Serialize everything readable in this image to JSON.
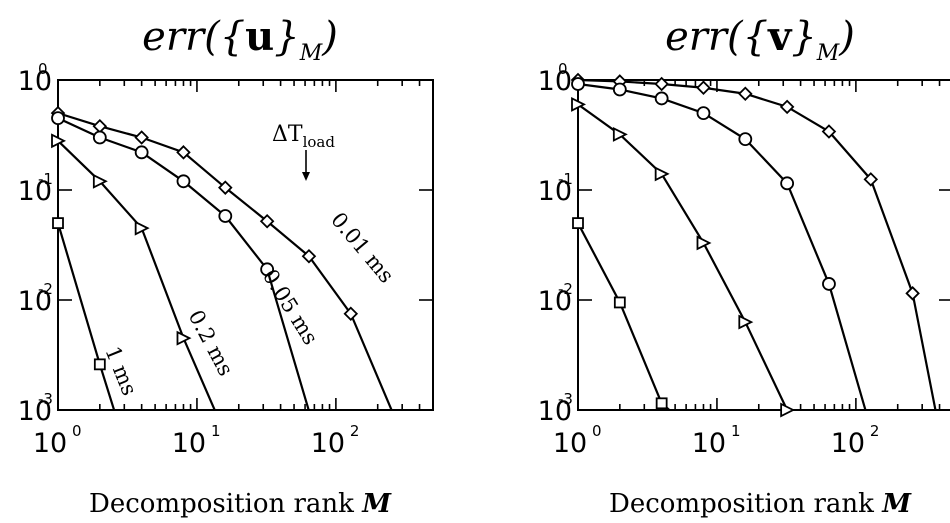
{
  "chart_data": [
    {
      "type": "line",
      "title": {
        "prefix": "err({",
        "bold": "u",
        "suffix": "}",
        "sub": "M",
        "close": ")"
      },
      "xlabel": {
        "text": "Decomposition rank ",
        "var": "M"
      },
      "xscale": "log",
      "yscale": "log",
      "xlim": [
        1,
        500
      ],
      "ylim": [
        0.001,
        1
      ],
      "xticks": [
        "10",
        "10",
        "10"
      ],
      "xtick_exponents": [
        "0",
        "1",
        "2"
      ],
      "yticks": [
        "10",
        "10",
        "10",
        "10"
      ],
      "ytick_exponents": [
        "-3",
        "-2",
        "-1",
        "0"
      ],
      "annotation": {
        "text": "ΔT",
        "sub": "load"
      },
      "series": [
        {
          "name": "0.01 ms",
          "marker": "diamond",
          "x": [
            1,
            2,
            4,
            8,
            16,
            32,
            64,
            128,
            256
          ],
          "y": [
            0.5,
            0.38,
            0.3,
            0.22,
            0.105,
            0.052,
            0.025,
            0.0075,
            0.00095
          ]
        },
        {
          "name": "0.05 ms",
          "marker": "circle",
          "x": [
            1,
            2,
            4,
            8,
            16,
            32,
            64
          ],
          "y": [
            0.45,
            0.3,
            0.22,
            0.12,
            0.058,
            0.019,
            0.00098
          ]
        },
        {
          "name": "0.2 ms",
          "marker": "triangle-right",
          "x": [
            1,
            2,
            4,
            8,
            16
          ],
          "y": [
            0.28,
            0.12,
            0.045,
            0.0045,
            0.0006
          ]
        },
        {
          "name": "1 ms",
          "marker": "square",
          "x": [
            1,
            2,
            2.6
          ],
          "y": [
            0.05,
            0.0026,
            0.0009
          ]
        }
      ]
    },
    {
      "type": "line",
      "title": {
        "prefix": "err({",
        "bold": "v",
        "suffix": "}",
        "sub": "M",
        "close": ")"
      },
      "xlabel": {
        "text": "Decomposition rank ",
        "var": "M"
      },
      "xscale": "log",
      "yscale": "log",
      "xlim": [
        1,
        500
      ],
      "ylim": [
        0.001,
        1
      ],
      "xticks": [
        "10",
        "10",
        "10"
      ],
      "xtick_exponents": [
        "0",
        "1",
        "2"
      ],
      "yticks": [
        "10",
        "10",
        "10",
        "10"
      ],
      "ytick_exponents": [
        "-3",
        "-2",
        "-1",
        "0"
      ],
      "series": [
        {
          "name": "0.01 ms",
          "marker": "diamond",
          "x": [
            1,
            2,
            4,
            8,
            16,
            32,
            64,
            128,
            256,
            380
          ],
          "y": [
            1.0,
            0.97,
            0.92,
            0.85,
            0.75,
            0.57,
            0.34,
            0.125,
            0.0115,
            0.0009
          ]
        },
        {
          "name": "0.05 ms",
          "marker": "circle",
          "x": [
            1,
            2,
            4,
            8,
            16,
            32,
            64,
            120
          ],
          "y": [
            0.92,
            0.82,
            0.68,
            0.5,
            0.29,
            0.115,
            0.014,
            0.0009
          ]
        },
        {
          "name": "0.2 ms",
          "marker": "triangle-right",
          "x": [
            1,
            2,
            4,
            8,
            16,
            32
          ],
          "y": [
            0.6,
            0.32,
            0.14,
            0.033,
            0.0063,
            0.001
          ]
        },
        {
          "name": "1 ms",
          "marker": "square",
          "x": [
            1,
            2,
            4,
            5
          ],
          "y": [
            0.05,
            0.0095,
            0.00115,
            0.0009
          ]
        }
      ]
    }
  ]
}
